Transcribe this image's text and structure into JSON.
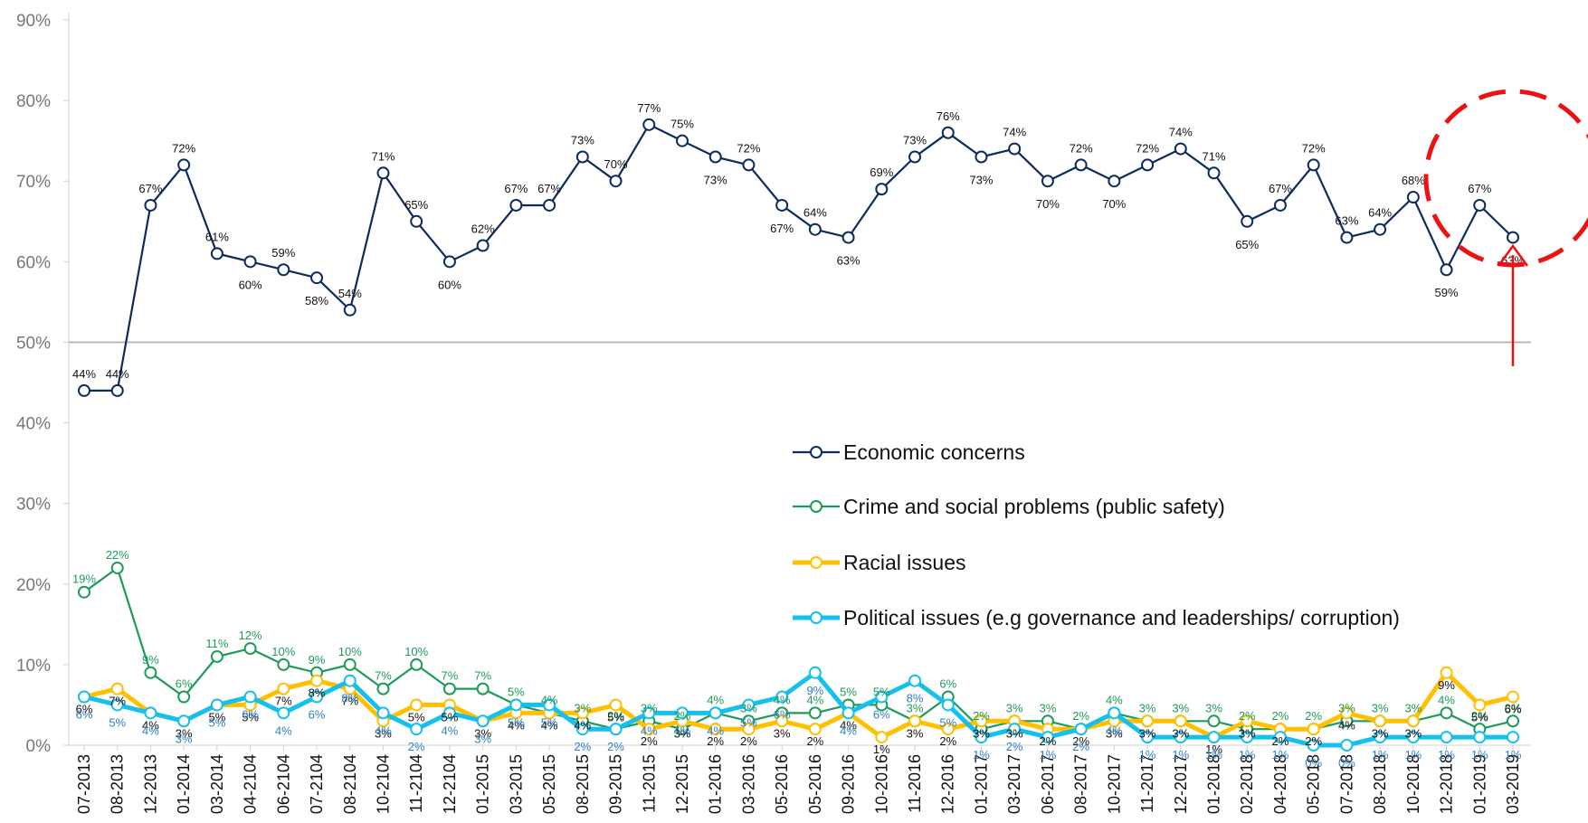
{
  "chart_data": {
    "type": "line",
    "title": "",
    "xlabel": "",
    "ylabel": "",
    "ylim": [
      0,
      90
    ],
    "yticks": [
      "0%",
      "10%",
      "20%",
      "30%",
      "40%",
      "50%",
      "60%",
      "70%",
      "80%",
      "90%"
    ],
    "ytick_values": [
      0,
      10,
      20,
      30,
      40,
      50,
      60,
      70,
      80,
      90
    ],
    "reference_line": 50,
    "categories": [
      "07-2013",
      "08-2013",
      "12-2013",
      "01-2014",
      "03-2014",
      "04-2104",
      "06-2104",
      "07-2104",
      "08-2104",
      "10-2104",
      "11-2104",
      "12-2104",
      "01-2015",
      "03-2015",
      "05-2015",
      "08-2015",
      "09-2015",
      "11-2015",
      "12-2015",
      "01-2016",
      "03-2016",
      "05-2016",
      "05-2016",
      "09-2016",
      "10-2016",
      "11-2016",
      "12-2016",
      "01-2017",
      "03-2017",
      "06-2017",
      "08-2017",
      "10-2017",
      "11-2017",
      "12-2017",
      "01-2018",
      "02-2018",
      "04-2018",
      "05-2018",
      "07-2018",
      "08-2018",
      "10-2018",
      "12-2018",
      "01-2019",
      "03-2019"
    ],
    "legend_position": "center-right",
    "series": [
      {
        "name": "Economic concerns",
        "color": "#0d2b5e",
        "values": [
          44,
          44,
          67,
          72,
          61,
          60,
          59,
          58,
          54,
          71,
          65,
          60,
          62,
          67,
          67,
          73,
          70,
          77,
          75,
          73,
          72,
          67,
          64,
          63,
          69,
          73,
          76,
          73,
          74,
          70,
          72,
          70,
          72,
          74,
          71,
          65,
          67,
          72,
          63,
          64,
          68,
          59,
          67,
          63
        ]
      },
      {
        "name": "Crime and social problems (public safety)",
        "color": "#1e9a5a",
        "values": [
          19,
          22,
          9,
          6,
          11,
          12,
          10,
          9,
          10,
          7,
          10,
          7,
          7,
          5,
          4,
          3,
          2,
          3,
          2,
          4,
          3,
          4,
          4,
          5,
          5,
          3,
          6,
          2,
          3,
          3,
          2,
          4,
          3,
          3,
          3,
          2,
          2,
          2,
          3,
          3,
          3,
          4,
          2,
          3
        ]
      },
      {
        "name": "Racial issues",
        "color": "#ffc000",
        "values": [
          6,
          7,
          4,
          3,
          5,
          5,
          7,
          8,
          7,
          3,
          5,
          5,
          3,
          4,
          4,
          4,
          5,
          2,
          3,
          2,
          2,
          3,
          2,
          4,
          1,
          3,
          2,
          3,
          3,
          2,
          2,
          3,
          3,
          3,
          1,
          3,
          2,
          2,
          4,
          3,
          3,
          9,
          5,
          6
        ]
      },
      {
        "name": "Political issues (e.g governance and leaderships/ corruption)",
        "color": "#15c0ec",
        "values": [
          6,
          5,
          4,
          3,
          5,
          6,
          4,
          6,
          8,
          4,
          2,
          4,
          3,
          5,
          5,
          2,
          2,
          4,
          4,
          4,
          5,
          6,
          9,
          4,
          6,
          8,
          5,
          1,
          2,
          1,
          2,
          4,
          1,
          1,
          1,
          1,
          1,
          0,
          0,
          1,
          1,
          1,
          1,
          1
        ]
      }
    ]
  }
}
